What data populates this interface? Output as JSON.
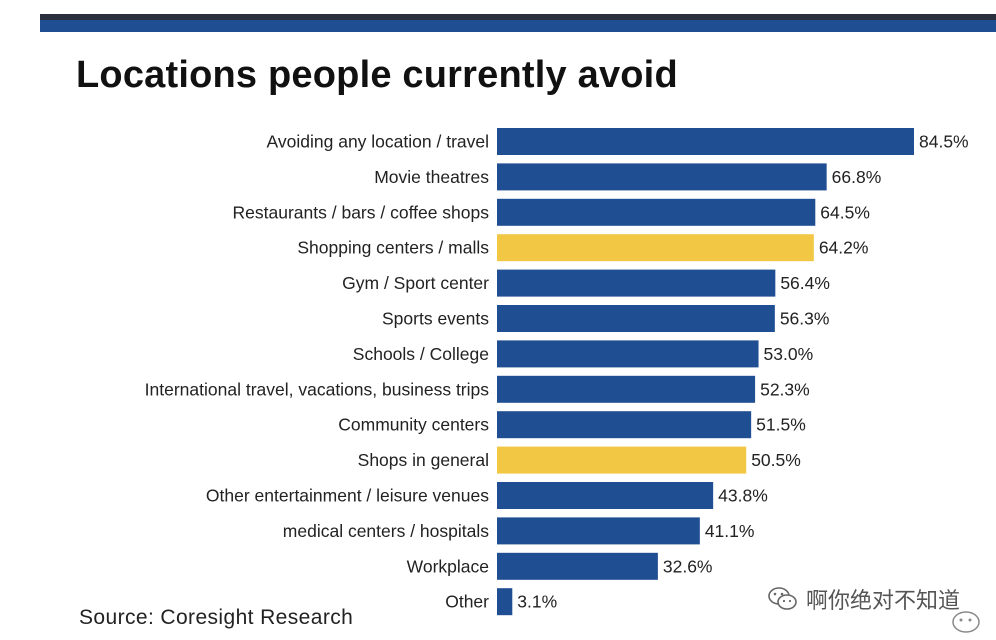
{
  "title": "Locations people currently avoid",
  "source": "Source: Coresight Research",
  "watermark": "啊你绝对不知道",
  "colors": {
    "primary": "#1f4e93",
    "highlight": "#f2c744",
    "topbar": "#1f4e93"
  },
  "chart_data": {
    "type": "bar",
    "orientation": "horizontal",
    "title": "Locations people currently avoid",
    "categories": [
      "Avoiding any location / travel",
      "Movie theatres",
      "Restaurants / bars / coffee shops",
      "Shopping centers / malls",
      "Gym / Sport center",
      "Sports events",
      "Schools / College",
      "International travel, vacations, business trips",
      "Community centers",
      "Shops in general",
      "Other entertainment / leisure venues",
      "medical centers / hospitals",
      "Workplace",
      "Other"
    ],
    "values": [
      84.5,
      66.8,
      64.5,
      64.2,
      56.4,
      56.3,
      53.0,
      52.3,
      51.5,
      50.5,
      43.8,
      41.1,
      32.6,
      3.1
    ],
    "value_labels": [
      "84.5%",
      "66.8%",
      "64.5%",
      "64.2%",
      "56.4%",
      "56.3%",
      "53.0%",
      "52.3%",
      "51.5%",
      "50.5%",
      "43.8%",
      "41.1%",
      "32.6%",
      "3.1%"
    ],
    "highlighted": [
      3,
      9
    ],
    "xlabel": "",
    "ylabel": "",
    "xlim": [
      0,
      85
    ]
  }
}
